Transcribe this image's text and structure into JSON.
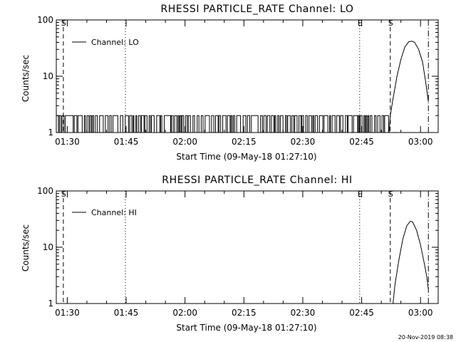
{
  "footer_timestamp": "20-Nov-2019 08:38",
  "chart_data": [
    {
      "type": "line",
      "title": "RHESSI PARTICLE_RATE Channel: LO",
      "xlabel": "Start Time (09-May-18 01:27:10)",
      "ylabel": "Counts/sec",
      "yscale": "log",
      "ylim": [
        1,
        100
      ],
      "xlim_minutes": [
        87.2,
        184.5
      ],
      "x_ticks": [
        {
          "t": 90,
          "label": "01:30"
        },
        {
          "t": 105,
          "label": "01:45"
        },
        {
          "t": 120,
          "label": "02:00"
        },
        {
          "t": 135,
          "label": "02:15"
        },
        {
          "t": 150,
          "label": "02:30"
        },
        {
          "t": 165,
          "label": "02:45"
        },
        {
          "t": 180,
          "label": "03:00"
        }
      ],
      "y_ticks": [
        {
          "v": 1,
          "label": "1"
        },
        {
          "v": 10,
          "label": "10"
        },
        {
          "v": 100,
          "label": "100"
        }
      ],
      "legend": {
        "entries": [
          "Channel: LO"
        ],
        "position": "top-left"
      },
      "markers": [
        {
          "t": 89.0,
          "label": "S",
          "style": "dashed"
        },
        {
          "t": 104.8,
          "label": "",
          "style": "dotted"
        },
        {
          "t": 164.5,
          "label": "E",
          "style": "dotted"
        },
        {
          "t": 172.3,
          "label": "S",
          "style": "dashed"
        },
        {
          "t": 182.0,
          "label": "",
          "style": "dashdot"
        }
      ],
      "series": [
        {
          "name": "Channel: LO",
          "baseline_noise": {
            "t_start": 87.3,
            "t_end": 172.0,
            "low": 1,
            "high": 2
          },
          "peak": [
            [
              172.3,
              2.0
            ],
            [
              173.0,
              4.0
            ],
            [
              174.0,
              10.0
            ],
            [
              175.0,
              20.0
            ],
            [
              176.0,
              33.0
            ],
            [
              177.0,
              41.0
            ],
            [
              177.8,
              42.0
            ],
            [
              178.5,
              40.0
            ],
            [
              179.5,
              30.0
            ],
            [
              180.5,
              18.0
            ],
            [
              181.3,
              8.0
            ],
            [
              182.0,
              3.5
            ]
          ]
        }
      ]
    },
    {
      "type": "line",
      "title": "RHESSI PARTICLE_RATE Channel: HI",
      "xlabel": "Start Time (09-May-18 01:27:10)",
      "ylabel": "Counts/sec",
      "yscale": "log",
      "ylim": [
        1,
        100
      ],
      "xlim_minutes": [
        87.2,
        184.5
      ],
      "x_ticks": [
        {
          "t": 90,
          "label": "01:30"
        },
        {
          "t": 105,
          "label": "01:45"
        },
        {
          "t": 120,
          "label": "02:00"
        },
        {
          "t": 135,
          "label": "02:15"
        },
        {
          "t": 150,
          "label": "02:30"
        },
        {
          "t": 165,
          "label": "02:45"
        },
        {
          "t": 180,
          "label": "03:00"
        }
      ],
      "y_ticks": [
        {
          "v": 1,
          "label": "1"
        },
        {
          "v": 10,
          "label": "10"
        },
        {
          "v": 100,
          "label": "100"
        }
      ],
      "legend": {
        "entries": [
          "Channel: HI"
        ],
        "position": "top-left"
      },
      "markers": [
        {
          "t": 89.0,
          "label": "S",
          "style": "dashed"
        },
        {
          "t": 104.8,
          "label": "",
          "style": "dotted"
        },
        {
          "t": 164.5,
          "label": "E",
          "style": "dotted"
        },
        {
          "t": 172.3,
          "label": "S",
          "style": "dashed"
        },
        {
          "t": 182.0,
          "label": "",
          "style": "dashdot"
        }
      ],
      "series": [
        {
          "name": "Channel: HI",
          "peak": [
            [
              173.0,
              1.0
            ],
            [
              173.5,
              2.2
            ],
            [
              174.5,
              6.0
            ],
            [
              175.5,
              14.0
            ],
            [
              176.5,
              24.0
            ],
            [
              177.4,
              29.0
            ],
            [
              178.0,
              28.0
            ],
            [
              179.0,
              20.0
            ],
            [
              180.0,
              11.0
            ],
            [
              181.0,
              5.0
            ],
            [
              181.6,
              3.0
            ],
            [
              182.0,
              1.8
            ]
          ]
        }
      ]
    }
  ]
}
